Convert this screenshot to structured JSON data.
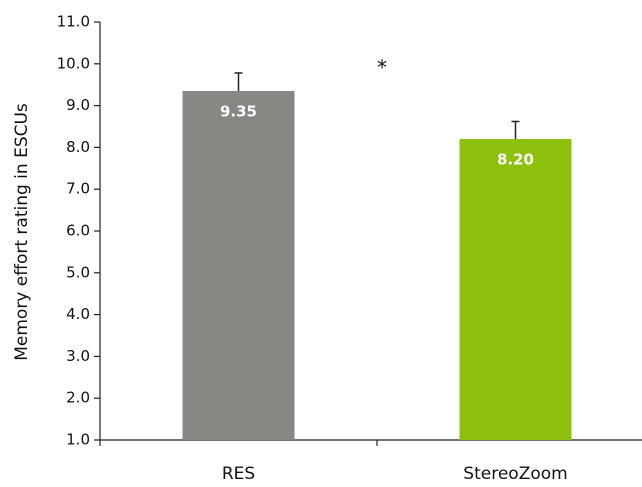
{
  "chart_data": {
    "type": "bar",
    "ylabel": "Memory effort rating in ESCUs",
    "categories": [
      "RES",
      "StereoZoom"
    ],
    "values": [
      9.35,
      8.2
    ],
    "value_labels": [
      "9.35",
      "8.20"
    ],
    "errors": [
      0.43,
      0.42
    ],
    "colors": [
      "#878883",
      "#8dbf0d"
    ],
    "annotation": "*",
    "ylim": [
      1,
      11
    ],
    "yticks": [
      {
        "value": 1,
        "label": "1.0"
      },
      {
        "value": 2,
        "label": "2.0"
      },
      {
        "value": 3,
        "label": "3.0"
      },
      {
        "value": 4,
        "label": "4.0"
      },
      {
        "value": 5,
        "label": "5.0"
      },
      {
        "value": 6,
        "label": "6.0"
      },
      {
        "value": 7,
        "label": "7.0"
      },
      {
        "value": 8,
        "label": "8.0"
      },
      {
        "value": 9,
        "label": "9.0"
      },
      {
        "value": 10,
        "label": "10.0"
      },
      {
        "value": 11,
        "label": "11.0"
      }
    ],
    "grid": false
  }
}
